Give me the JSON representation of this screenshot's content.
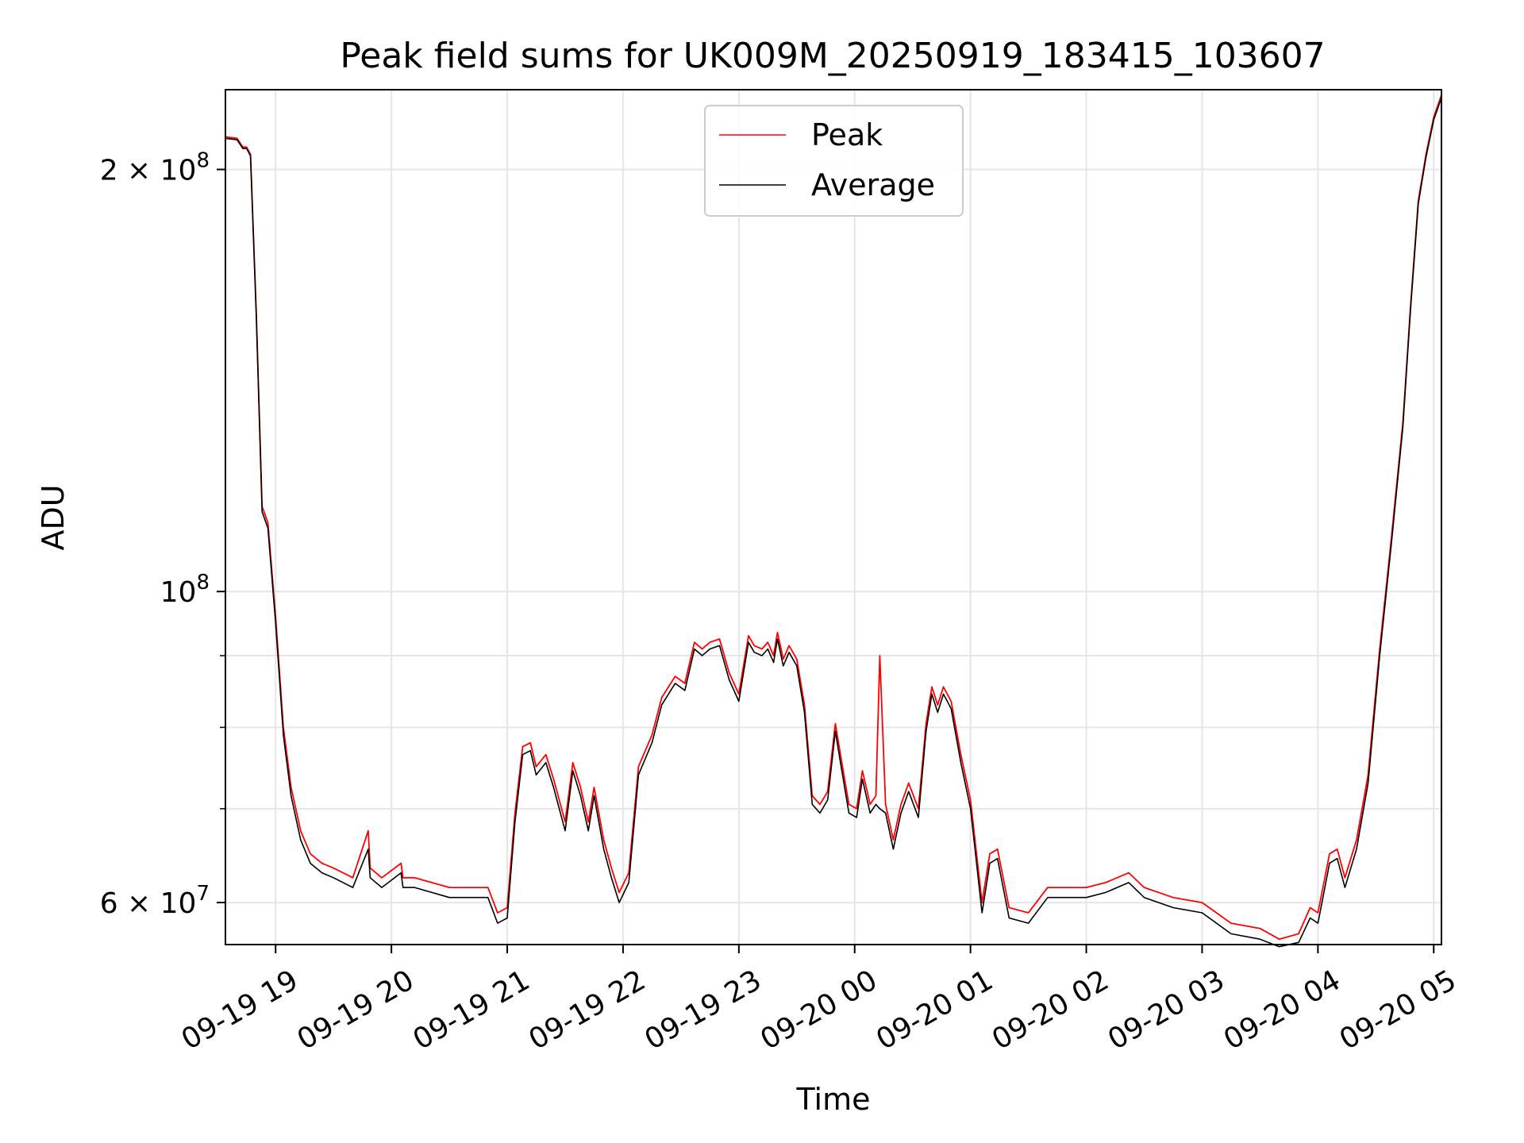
{
  "chart_data": {
    "type": "line",
    "title": "Peak field sums for UK009M_20250919_183415_103607",
    "xlabel": "Time",
    "ylabel": "ADU",
    "yscale": "log",
    "xlim": [
      "2025-09-19 18:34",
      "2025-09-20 05:04"
    ],
    "ylim": [
      56000000,
      228000000
    ],
    "grid": true,
    "legend_position": "top-center",
    "x_ticks": [
      {
        "label": "09-19 19",
        "time": "2025-09-19 19:00"
      },
      {
        "label": "09-19 20",
        "time": "2025-09-19 20:00"
      },
      {
        "label": "09-19 21",
        "time": "2025-09-19 21:00"
      },
      {
        "label": "09-19 22",
        "time": "2025-09-19 22:00"
      },
      {
        "label": "09-19 23",
        "time": "2025-09-19 23:00"
      },
      {
        "label": "09-20 00",
        "time": "2025-09-20 00:00"
      },
      {
        "label": "09-20 01",
        "time": "2025-09-20 01:00"
      },
      {
        "label": "09-20 02",
        "time": "2025-09-20 02:00"
      },
      {
        "label": "09-20 03",
        "time": "2025-09-20 03:00"
      },
      {
        "label": "09-20 04",
        "time": "2025-09-20 04:00"
      },
      {
        "label": "09-20 05",
        "time": "2025-09-20 05:00"
      }
    ],
    "y_ticks": [
      {
        "base": "6",
        "exp": "7",
        "value": 60000000
      },
      {
        "base": "",
        "exp": "8",
        "value": 100000000
      },
      {
        "base": "2",
        "exp": "8",
        "value": 200000000
      }
    ],
    "y_minor_ticks": [
      70000000,
      80000000,
      90000000
    ],
    "x": [
      "2025-09-19 18:34",
      "2025-09-19 18:40",
      "2025-09-19 18:43",
      "2025-09-19 18:45",
      "2025-09-19 18:47",
      "2025-09-19 18:50",
      "2025-09-19 18:53",
      "2025-09-19 18:56",
      "2025-09-19 19:00",
      "2025-09-19 19:04",
      "2025-09-19 19:08",
      "2025-09-19 19:13",
      "2025-09-19 19:18",
      "2025-09-19 19:24",
      "2025-09-19 19:30",
      "2025-09-19 19:40",
      "2025-09-19 19:48",
      "2025-09-19 19:49",
      "2025-09-19 19:55",
      "2025-09-19 20:05",
      "2025-09-19 20:06",
      "2025-09-19 20:12",
      "2025-09-19 20:30",
      "2025-09-19 20:50",
      "2025-09-19 20:55",
      "2025-09-19 21:00",
      "2025-09-19 21:04",
      "2025-09-19 21:08",
      "2025-09-19 21:12",
      "2025-09-19 21:15",
      "2025-09-19 21:20",
      "2025-09-19 21:24",
      "2025-09-19 21:30",
      "2025-09-19 21:34",
      "2025-09-19 21:38",
      "2025-09-19 21:42",
      "2025-09-19 21:45",
      "2025-09-19 21:50",
      "2025-09-19 21:54",
      "2025-09-19 21:58",
      "2025-09-19 22:03",
      "2025-09-19 22:08",
      "2025-09-19 22:15",
      "2025-09-19 22:20",
      "2025-09-19 22:27",
      "2025-09-19 22:32",
      "2025-09-19 22:37",
      "2025-09-19 22:41",
      "2025-09-19 22:45",
      "2025-09-19 22:50",
      "2025-09-19 22:55",
      "2025-09-19 23:00",
      "2025-09-19 23:05",
      "2025-09-19 23:08",
      "2025-09-19 23:12",
      "2025-09-19 23:15",
      "2025-09-19 23:18",
      "2025-09-19 23:20",
      "2025-09-19 23:23",
      "2025-09-19 23:26",
      "2025-09-19 23:30",
      "2025-09-19 23:34",
      "2025-09-19 23:38",
      "2025-09-19 23:42",
      "2025-09-19 23:46",
      "2025-09-19 23:50",
      "2025-09-19 23:53",
      "2025-09-19 23:57",
      "2025-09-20 00:01",
      "2025-09-20 00:04",
      "2025-09-20 00:08",
      "2025-09-20 00:11",
      "2025-09-20 00:13",
      "2025-09-20 00:16",
      "2025-09-20 00:20",
      "2025-09-20 00:24",
      "2025-09-20 00:28",
      "2025-09-20 00:33",
      "2025-09-20 00:37",
      "2025-09-20 00:40",
      "2025-09-20 00:43",
      "2025-09-20 00:46",
      "2025-09-20 00:50",
      "2025-09-20 00:55",
      "2025-09-20 01:00",
      "2025-09-20 01:06",
      "2025-09-20 01:10",
      "2025-09-20 01:14",
      "2025-09-20 01:20",
      "2025-09-20 01:30",
      "2025-09-20 01:40",
      "2025-09-20 01:50",
      "2025-09-20 02:00",
      "2025-09-20 02:10",
      "2025-09-20 02:22",
      "2025-09-20 02:30",
      "2025-09-20 02:45",
      "2025-09-20 03:00",
      "2025-09-20 03:15",
      "2025-09-20 03:30",
      "2025-09-20 03:40",
      "2025-09-20 03:50",
      "2025-09-20 03:56",
      "2025-09-20 04:00",
      "2025-09-20 04:06",
      "2025-09-20 04:10",
      "2025-09-20 04:14",
      "2025-09-20 04:20",
      "2025-09-20 04:26",
      "2025-09-20 04:32",
      "2025-09-20 04:38",
      "2025-09-20 04:44",
      "2025-09-20 04:48",
      "2025-09-20 04:52",
      "2025-09-20 04:56",
      "2025-09-20 05:00",
      "2025-09-20 05:04"
    ],
    "series": [
      {
        "name": "Peak",
        "color": "#ff0000",
        "values": [
          211000000,
          210500000,
          207500000,
          207500000,
          205000000,
          158000000,
          115000000,
          112000000,
          96000000,
          80000000,
          72500000,
          67500000,
          65000000,
          64000000,
          63500000,
          62500000,
          67500000,
          63500000,
          62500000,
          64000000,
          62500000,
          62500000,
          61500000,
          61500000,
          59000000,
          59500000,
          69500000,
          77500000,
          78000000,
          75000000,
          76500000,
          73500000,
          68500000,
          75500000,
          72500000,
          68500000,
          72500000,
          66500000,
          63500000,
          61000000,
          63000000,
          75000000,
          79000000,
          84000000,
          87000000,
          86000000,
          92000000,
          91000000,
          92000000,
          92500000,
          87500000,
          84500000,
          93000000,
          91500000,
          91000000,
          92000000,
          90000000,
          93500000,
          89500000,
          91500000,
          89500000,
          83000000,
          71500000,
          70500000,
          72000000,
          80500000,
          76000000,
          70500000,
          70000000,
          74500000,
          70500000,
          71500000,
          90000000,
          70500000,
          66500000,
          70500000,
          73000000,
          70000000,
          80500000,
          85500000,
          83000000,
          85500000,
          83500000,
          76500000,
          71000000,
          60000000,
          65000000,
          65500000,
          59500000,
          59000000,
          61500000,
          61500000,
          61500000,
          62000000,
          63000000,
          61500000,
          60500000,
          60000000,
          58000000,
          57500000,
          56500000,
          57000000,
          59500000,
          59000000,
          65000000,
          65500000,
          62500000,
          66500000,
          74000000,
          91000000,
          109000000,
          132000000,
          160000000,
          190000000,
          205000000,
          218000000,
          226000000
        ]
      },
      {
        "name": "Average",
        "color": "#000000",
        "values": [
          210500000,
          210000000,
          207000000,
          207000000,
          204500000,
          157000000,
          114000000,
          111000000,
          95000000,
          79000000,
          71500000,
          66500000,
          64000000,
          63000000,
          62500000,
          61500000,
          65500000,
          62500000,
          61500000,
          63000000,
          61500000,
          61500000,
          60500000,
          60500000,
          58000000,
          58500000,
          68500000,
          76500000,
          77000000,
          74000000,
          75500000,
          72500000,
          67500000,
          74500000,
          71500000,
          67500000,
          71500000,
          65500000,
          62500000,
          60000000,
          62000000,
          74000000,
          78000000,
          83000000,
          86000000,
          85000000,
          91000000,
          90000000,
          91000000,
          91500000,
          86500000,
          83500000,
          92000000,
          90500000,
          90000000,
          91000000,
          89000000,
          92500000,
          88500000,
          90500000,
          88500000,
          82000000,
          70500000,
          69500000,
          71000000,
          79500000,
          75000000,
          69500000,
          69000000,
          73500000,
          69500000,
          70500000,
          70000000,
          69500000,
          65500000,
          69500000,
          72000000,
          69000000,
          79500000,
          84500000,
          82000000,
          84500000,
          82500000,
          75500000,
          70000000,
          59000000,
          64000000,
          64500000,
          58500000,
          58000000,
          60500000,
          60500000,
          60500000,
          61000000,
          62000000,
          60500000,
          59500000,
          59000000,
          57000000,
          56500000,
          55800000,
          56200000,
          58500000,
          58000000,
          64000000,
          64500000,
          61500000,
          65500000,
          73000000,
          90000000,
          108000000,
          131000000,
          159000000,
          189000000,
          204000000,
          217000000,
          225000000
        ]
      }
    ]
  }
}
